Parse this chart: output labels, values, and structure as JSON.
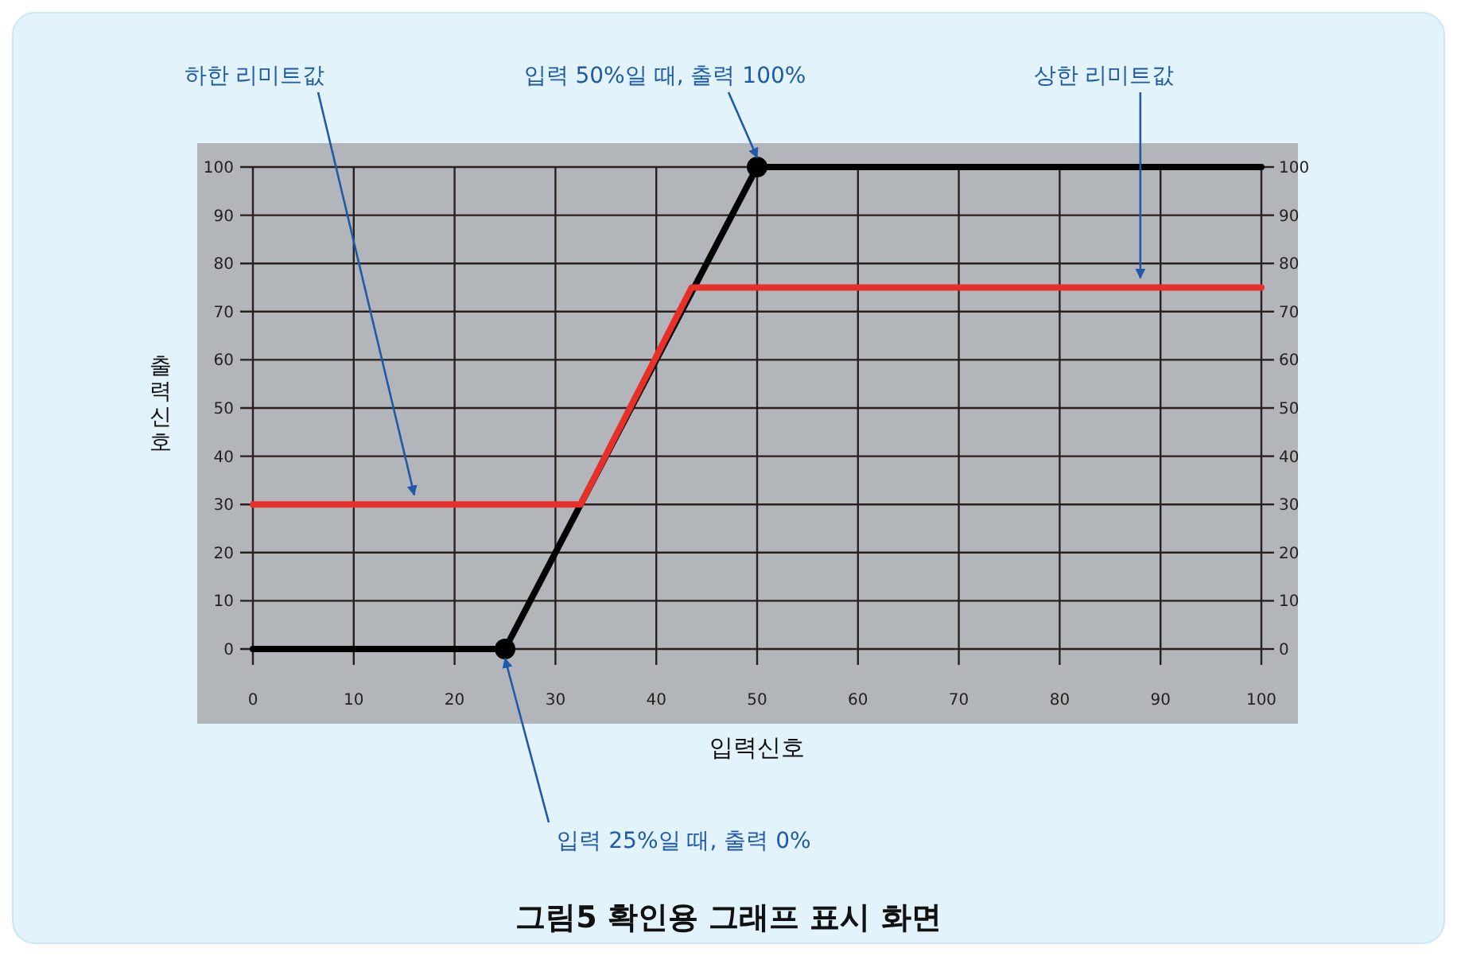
{
  "chart_data": {
    "type": "line",
    "title": "그림5  확인용 그래프 표시 화면",
    "xlabel": "입력신호",
    "ylabel": "출력신호",
    "xlim": [
      0,
      100
    ],
    "xticks": [
      0,
      10,
      20,
      30,
      40,
      50,
      60,
      70,
      80,
      90,
      100
    ],
    "ylim": [
      0,
      100
    ],
    "yticks": [
      0,
      10,
      20,
      30,
      40,
      50,
      60,
      70,
      80,
      90,
      100
    ],
    "y2lim": [
      0,
      100
    ],
    "y2ticks": [
      0,
      10,
      20,
      30,
      40,
      50,
      60,
      70,
      80,
      90,
      100
    ],
    "grid": true,
    "series": [
      {
        "color": "#000000",
        "x": [
          0,
          25,
          50,
          100
        ],
        "values": [
          0,
          0,
          100,
          100
        ]
      },
      {
        "color": "#e8302a",
        "x": [
          0,
          32.5,
          43.5,
          100
        ],
        "values": [
          30,
          30,
          75,
          75
        ]
      },
      {
        "type": "scatter",
        "color": "#000000",
        "marker": "circle",
        "x": [
          25,
          50
        ],
        "values": [
          0,
          100
        ]
      }
    ],
    "annotations": [
      {
        "text": "하한 리미트값",
        "x": 16,
        "y": 30
      },
      {
        "text": "입력 50%일 때, 출력 100%",
        "x": 50,
        "y": 100
      },
      {
        "text": "상한 리미트값",
        "x": 88,
        "y": 75
      },
      {
        "text": "입력 25%일 때, 출력 0%",
        "x": 25,
        "y": 0
      }
    ]
  }
}
